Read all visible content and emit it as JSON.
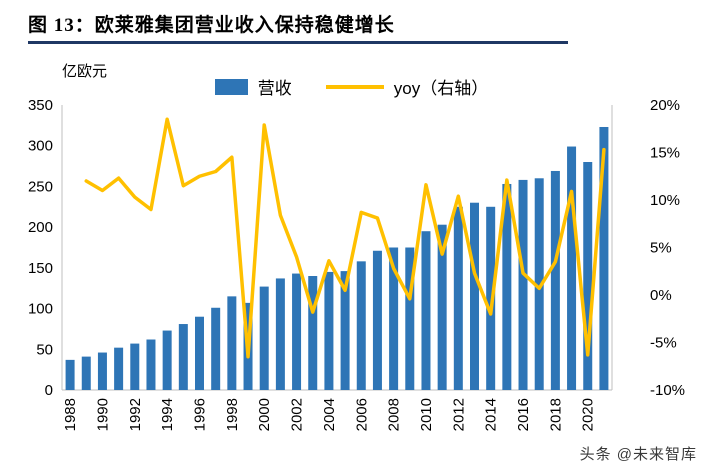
{
  "figure": {
    "title": "图 13：欧莱雅集团营业收入保持稳健增长",
    "axis_unit_label": "亿欧元",
    "watermark": "头条 @未来智库"
  },
  "legend": {
    "revenue_label": "营收",
    "yoy_label": "yoy（右轴）"
  },
  "chart_data": {
    "type": "bar",
    "title": "欧莱雅集团营业收入保持稳健增长",
    "xlabel": "",
    "ylabel": "亿欧元",
    "legend_position": "top",
    "grid": false,
    "categories": [
      "1988",
      "1989",
      "1990",
      "1991",
      "1992",
      "1993",
      "1994",
      "1995",
      "1996",
      "1997",
      "1998",
      "1999",
      "2000",
      "2001",
      "2002",
      "2003",
      "2004",
      "2005",
      "2006",
      "2007",
      "2008",
      "2009",
      "2010",
      "2011",
      "2012",
      "2013",
      "2014",
      "2015",
      "2016",
      "2017",
      "2018",
      "2019",
      "2020",
      "2021"
    ],
    "series": [
      {
        "name": "营收",
        "type": "bar",
        "axis": "left",
        "unit": "亿欧元",
        "values": [
          37,
          41,
          46,
          52,
          57,
          62,
          73,
          81,
          90,
          101,
          115,
          107,
          127,
          137,
          143,
          140,
          145,
          146,
          158,
          171,
          175,
          175,
          195,
          203,
          225,
          230,
          225,
          253,
          258,
          260,
          269,
          299,
          280,
          323
        ]
      },
      {
        "name": "yoy（右轴）",
        "type": "line",
        "axis": "right",
        "unit": "%",
        "values": [
          null,
          12,
          11,
          12.3,
          10.3,
          9,
          18.5,
          11.5,
          12.5,
          13,
          14.5,
          -6.5,
          17.9,
          8.4,
          4,
          -1.8,
          3.6,
          0.5,
          8.7,
          8.1,
          2.8,
          -0.4,
          11.6,
          4.3,
          10.4,
          2.3,
          -2,
          12.1,
          2.3,
          0.7,
          3.5,
          10.9,
          -6.3,
          15.3
        ]
      }
    ],
    "left_axis": {
      "min": 0,
      "max": 350,
      "tick_step": 50,
      "ticks": [
        0,
        50,
        100,
        150,
        200,
        250,
        300,
        350
      ]
    },
    "right_axis": {
      "min": -10,
      "max": 20,
      "tick_step": 5,
      "ticks": [
        "20%",
        "15%",
        "10%",
        "5%",
        "0%",
        "-5%",
        "-10%"
      ]
    },
    "x_tick_labels": [
      "1988",
      "1990",
      "1992",
      "1994",
      "1996",
      "1998",
      "2000",
      "2002",
      "2004",
      "2006",
      "2008",
      "2010",
      "2012",
      "2014",
      "2016",
      "2018",
      "2020"
    ],
    "colors": {
      "bar": "#2E75B6",
      "line": "#FFC000",
      "title_rule": "#1F3864",
      "axis": "#BFBFBF",
      "text": "#000000"
    }
  }
}
